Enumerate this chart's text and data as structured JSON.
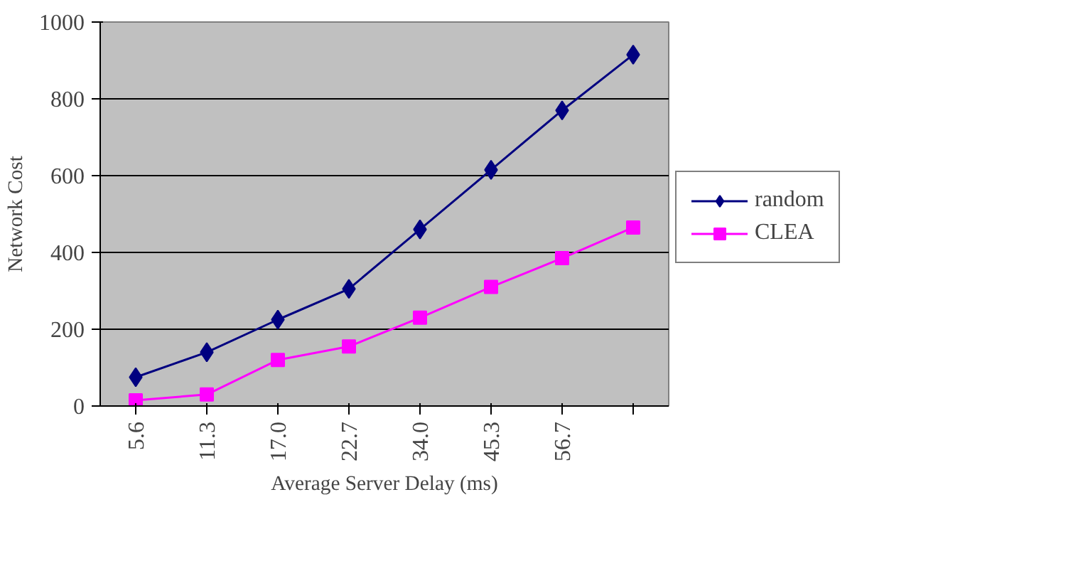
{
  "chart_data": {
    "type": "line",
    "xlabel": "Average Server Delay (ms)",
    "ylabel": "Network Cost",
    "categories": [
      "5.6",
      "11.3",
      "17.0",
      "22.7",
      "34.0",
      "45.3",
      "56.7",
      null
    ],
    "series": [
      {
        "name": "random",
        "color": "#000080",
        "marker": "diamond",
        "values": [
          75,
          140,
          225,
          305,
          460,
          615,
          770,
          915
        ]
      },
      {
        "name": "CLEA",
        "color": "#ff00ff",
        "marker": "square",
        "values": [
          15,
          30,
          120,
          155,
          230,
          310,
          385,
          465
        ]
      }
    ],
    "ylim": [
      0,
      1000
    ],
    "yticks": [
      0,
      200,
      400,
      600,
      800,
      1000
    ],
    "grid": "y",
    "legend": "right",
    "line_style": "solid"
  }
}
